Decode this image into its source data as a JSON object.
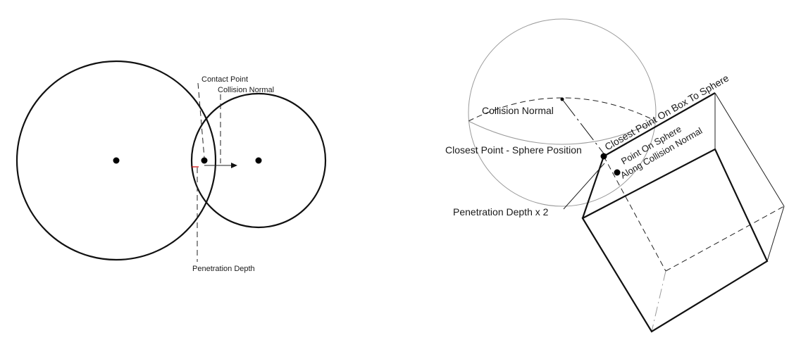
{
  "left_diagram": {
    "labels": {
      "contact_point": "Contact Point",
      "collision_normal": "Collision Normal",
      "penetration_depth": "Penetration Depth"
    }
  },
  "right_diagram": {
    "labels": {
      "collision_normal": "Collision Normal",
      "closest_point_minus_sphere": "Closest Point - Sphere Position",
      "closest_point_on_box": "Closest Point On Box To Sphere",
      "point_on_sphere_line1": "Point On Sphere",
      "point_on_sphere_line2": "Along Collision Normal",
      "penetration_depth_x2": "Penetration Depth x 2"
    }
  },
  "colors": {
    "stroke": "#111111",
    "faint_stroke": "#9a9a9a",
    "penetration_marker": "#cc0000"
  }
}
